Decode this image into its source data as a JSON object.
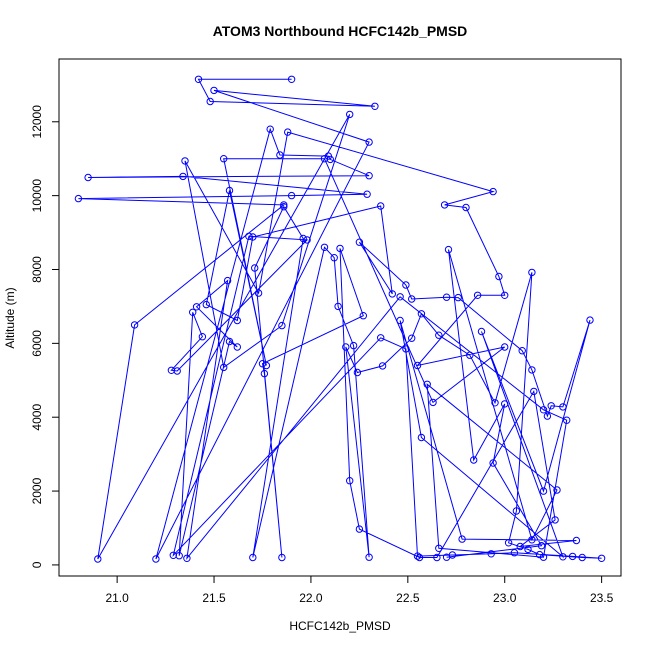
{
  "chart_data": {
    "type": "line",
    "title": "ATOM3 Northbound HCFC142b_PMSD",
    "xlabel": "HCFC142b_PMSD",
    "ylabel": "Altitude (m)",
    "xlim": [
      20.7,
      23.6
    ],
    "ylim": [
      -300,
      13700
    ],
    "x_ticks": [
      21.0,
      21.5,
      22.0,
      22.5,
      23.0,
      23.5
    ],
    "x_tick_labels": [
      "21.0",
      "21.5",
      "22.0",
      "22.5",
      "23.0",
      "23.5"
    ],
    "y_ticks": [
      0,
      2000,
      4000,
      6000,
      8000,
      10000,
      12000
    ],
    "y_tick_labels": [
      "0",
      "2000",
      "4000",
      "6000",
      "8000",
      "10000",
      "12000"
    ],
    "grid": false,
    "legend": "none",
    "line_color": "#0000ff",
    "marker": "open-circle",
    "series": [
      {
        "points": [
          [
            21.9,
            13150
          ],
          [
            21.42,
            13150
          ],
          [
            21.48,
            12550
          ],
          [
            22.33,
            12420
          ],
          [
            21.5,
            12850
          ],
          [
            22.3,
            11450
          ],
          [
            21.2,
            160
          ],
          [
            21.79,
            11800
          ],
          [
            21.84,
            11100
          ],
          [
            22.09,
            11070
          ],
          [
            22.1,
            10980
          ],
          [
            22.3,
            10540
          ],
          [
            20.85,
            10490
          ],
          [
            21.34,
            10520
          ],
          [
            22.29,
            10040
          ],
          [
            21.9,
            10000
          ],
          [
            20.8,
            9920
          ],
          [
            21.86,
            9750
          ],
          [
            21.09,
            6500
          ],
          [
            20.9,
            160
          ],
          [
            22.2,
            12200
          ],
          [
            21.85,
            6480
          ],
          [
            21.55,
            5350
          ],
          [
            21.35,
            10940
          ],
          [
            21.73,
            7360
          ],
          [
            21.88,
            11720
          ],
          [
            22.94,
            10110
          ],
          [
            22.69,
            9750
          ],
          [
            22.8,
            9680
          ],
          [
            22.97,
            7810
          ],
          [
            23.0,
            7300
          ],
          [
            22.86,
            7300
          ],
          [
            22.55,
            5400
          ],
          [
            23.0,
            5900
          ],
          [
            22.63,
            4400
          ],
          [
            22.07,
            11000
          ],
          [
            21.55,
            11000
          ],
          [
            21.77,
            5400
          ],
          [
            21.58,
            10140
          ],
          [
            21.46,
            7050
          ],
          [
            21.62,
            6620
          ],
          [
            21.7,
            8880
          ],
          [
            22.36,
            9720
          ],
          [
            22.42,
            7340
          ],
          [
            22.25,
            8740
          ],
          [
            22.49,
            7580
          ],
          [
            22.52,
            7200
          ],
          [
            22.7,
            7250
          ],
          [
            22.76,
            7240
          ],
          [
            23.09,
            5800
          ],
          [
            23.14,
            5280
          ],
          [
            23.22,
            4030
          ],
          [
            23.24,
            4310
          ],
          [
            23.3,
            4280
          ],
          [
            23.44,
            6630
          ],
          [
            23.2,
            2000
          ],
          [
            22.88,
            6320
          ],
          [
            23.3,
            220
          ],
          [
            22.57,
            3450
          ],
          [
            22.46,
            6620
          ],
          [
            22.78,
            700
          ],
          [
            23.37,
            660
          ],
          [
            23.08,
            500
          ],
          [
            23.26,
            1220
          ],
          [
            23.15,
            4700
          ],
          [
            22.65,
            200
          ],
          [
            22.56,
            200
          ],
          [
            22.25,
            970
          ],
          [
            22.2,
            2280
          ],
          [
            22.15,
            8570
          ],
          [
            22.27,
            6750
          ],
          [
            21.75,
            5450
          ],
          [
            21.76,
            5180
          ],
          [
            21.85,
            200
          ],
          [
            21.71,
            8040
          ],
          [
            21.86,
            9700
          ],
          [
            21.96,
            8840
          ],
          [
            21.7,
            200
          ],
          [
            22.07,
            8600
          ],
          [
            22.12,
            8320
          ],
          [
            22.14,
            7000
          ],
          [
            22.22,
            5940
          ],
          [
            22.3,
            210
          ],
          [
            22.18,
            5900
          ],
          [
            22.24,
            5210
          ],
          [
            22.37,
            5390
          ],
          [
            22.52,
            6140
          ],
          [
            22.57,
            6800
          ],
          [
            22.66,
            6220
          ],
          [
            22.82,
            5680
          ],
          [
            22.95,
            4390
          ],
          [
            23.14,
            7920
          ],
          [
            23.06,
            1460
          ],
          [
            23.02,
            600
          ],
          [
            23.12,
            420
          ],
          [
            23.18,
            280
          ],
          [
            23.4,
            200
          ],
          [
            23.5,
            180
          ],
          [
            23.35,
            230
          ],
          [
            23.05,
            330
          ],
          [
            22.93,
            300
          ],
          [
            22.73,
            270
          ],
          [
            22.55,
            240
          ],
          [
            22.49,
            5850
          ],
          [
            22.36,
            6150
          ],
          [
            21.29,
            260
          ],
          [
            21.68,
            8900
          ],
          [
            21.98,
            8800
          ],
          [
            21.31,
            5250
          ],
          [
            21.28,
            5270
          ],
          [
            21.44,
            6180
          ],
          [
            21.39,
            6840
          ],
          [
            21.32,
            250
          ],
          [
            21.58,
            6050
          ],
          [
            21.62,
            5900
          ],
          [
            21.41,
            6990
          ],
          [
            21.57,
            7700
          ],
          [
            21.36,
            180
          ],
          [
            22.46,
            7260
          ],
          [
            23.2,
            4200
          ],
          [
            23.32,
            3920
          ],
          [
            23.2,
            210
          ],
          [
            22.66,
            450
          ],
          [
            22.6,
            4890
          ],
          [
            23.27,
            2030
          ],
          [
            23.14,
            680
          ],
          [
            22.71,
            8540
          ],
          [
            22.84,
            2840
          ],
          [
            23.0,
            4360
          ],
          [
            22.94,
            2760
          ],
          [
            23.19,
            520
          ],
          [
            22.7,
            210
          ]
        ]
      }
    ]
  }
}
